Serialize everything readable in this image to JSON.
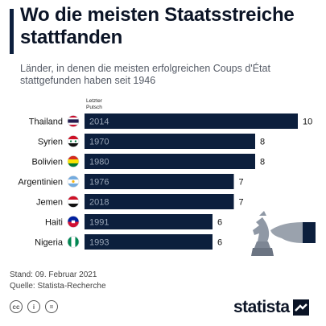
{
  "title": "Wo die meisten Staatsstreiche stattfanden",
  "subtitle": "Länder, in denen die meisten erfolgreichen Coups d'État stattgefunden haben seit 1946",
  "column_header": "Letzter Putsch",
  "chart_data": {
    "type": "bar",
    "orientation": "horizontal",
    "categories": [
      "Thailand",
      "Syrien",
      "Bolivien",
      "Argentinien",
      "Jemen",
      "Haiti",
      "Nigeria"
    ],
    "values": [
      10,
      8,
      8,
      7,
      7,
      6,
      6
    ],
    "last_coup_year": [
      "2014",
      "1970",
      "1980",
      "1976",
      "2018",
      "1991",
      "1993"
    ],
    "flag_icons": [
      "thailand-flag-icon",
      "syria-flag-icon",
      "bolivia-flag-icon",
      "argentina-flag-icon",
      "yemen-flag-icon",
      "haiti-flag-icon",
      "nigeria-flag-icon"
    ],
    "xlim": [
      0,
      10
    ],
    "bar_color": "#0c1f3d",
    "grid": false
  },
  "footer": {
    "date_line": "Stand: 09. Februar 2021",
    "source_line": "Quelle: Statista-Recherche"
  },
  "license_icons": [
    "cc-icon",
    "by-icon",
    "nd-icon"
  ],
  "license_text": [
    "cc",
    "i",
    "="
  ],
  "logo": "statista",
  "decoration": "chess-knight-hand-icon",
  "colors": {
    "dark_navy": "#0c1f3d",
    "year_text": "#9aa6b8"
  }
}
